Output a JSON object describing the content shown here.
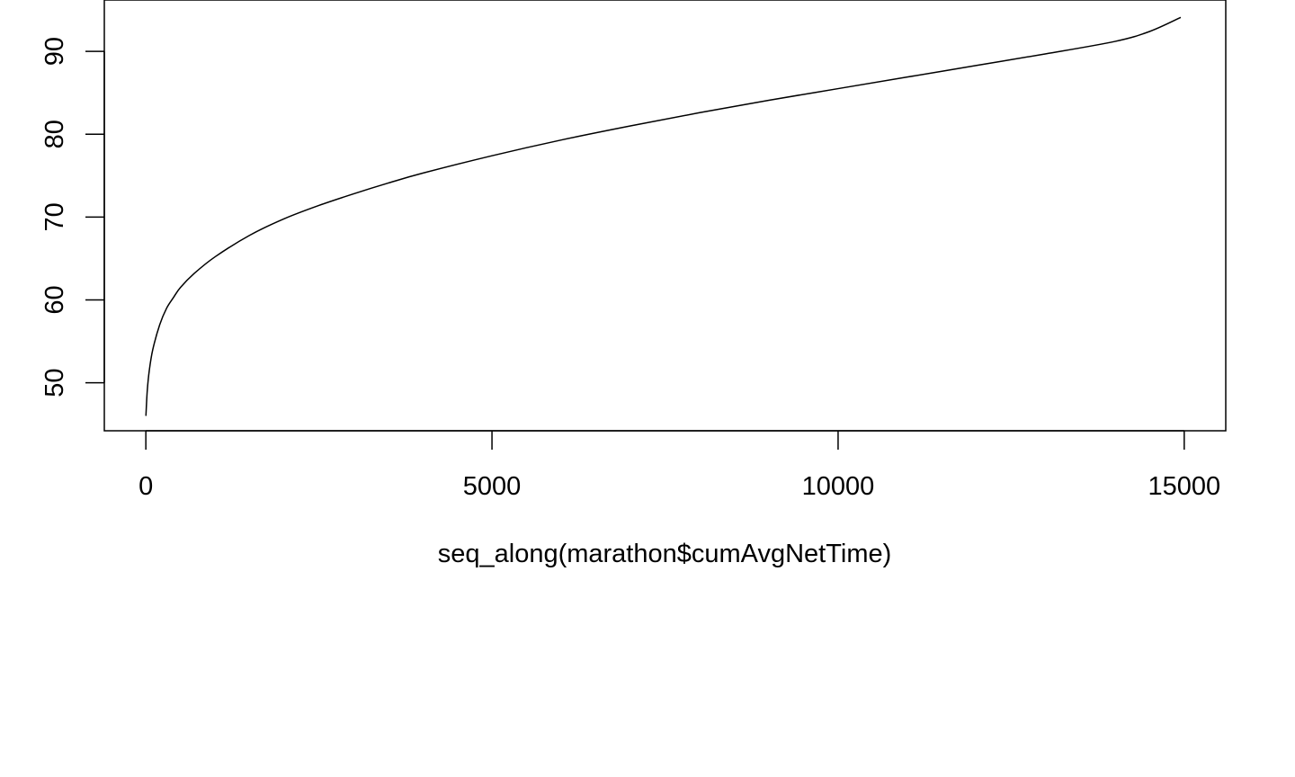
{
  "chart_data": {
    "type": "line",
    "title": "",
    "xlabel": "seq_along(marathon$cumAvgNetTime)",
    "ylabel": "",
    "xlim": [
      -600,
      15600
    ],
    "ylim": [
      44.2,
      96.2
    ],
    "x_ticks": [
      0,
      5000,
      10000,
      15000
    ],
    "x_tick_labels": [
      "0",
      "5000",
      "10000",
      "15000"
    ],
    "y_ticks": [
      50,
      60,
      70,
      80,
      90
    ],
    "y_tick_labels": [
      "50",
      "60",
      "70",
      "80",
      "90"
    ],
    "grid": false,
    "legend": "none",
    "line_color": "#000000",
    "series": [
      {
        "x": [
          1,
          20,
          50,
          100,
          200,
          300,
          400,
          500,
          700,
          1000,
          1500,
          2000,
          2500,
          3000,
          3500,
          4000,
          5000,
          6000,
          7000,
          8000,
          9000,
          10000,
          11000,
          12000,
          13000,
          14000,
          14500,
          14950
        ],
        "y": [
          46.0,
          49.0,
          51.5,
          54.0,
          57.0,
          59.0,
          60.3,
          61.5,
          63.2,
          65.2,
          67.8,
          69.8,
          71.4,
          72.8,
          74.1,
          75.3,
          77.4,
          79.3,
          81.0,
          82.6,
          84.1,
          85.5,
          86.9,
          88.3,
          89.7,
          91.2,
          92.4,
          94.1
        ]
      }
    ]
  }
}
